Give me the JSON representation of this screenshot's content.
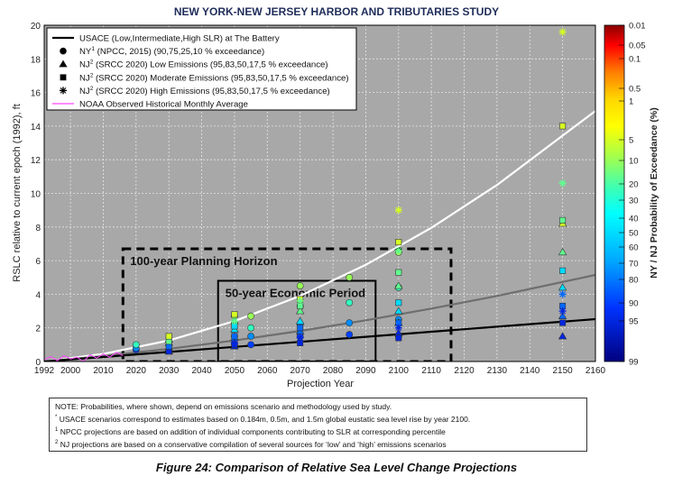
{
  "page": {
    "title": "NEW YORK-NEW JERSEY HARBOR AND TRIBUTARIES STUDY",
    "caption": "Figure 24:  Comparison of Relative Sea Level Change Projections"
  },
  "colors": {
    "plot_bg": "#a8a8a8",
    "grid": "#e6e6e6",
    "usace": "#000000",
    "noaa": "#ff44ff"
  },
  "legend": [
    {
      "marker": "line-black",
      "label": "USACE (Low,Intermediate,High SLR) at The Battery"
    },
    {
      "marker": "circle",
      "label": "NY",
      "sup": "1",
      "rest": " (NPCC, 2015) (90,75,25,10 % exceedance)"
    },
    {
      "marker": "triangle",
      "label": "NJ",
      "sup": "2",
      "rest": " (SRCC 2020) Low Emissions (95,83,50,17,5 % exceedance)"
    },
    {
      "marker": "square",
      "label": "NJ",
      "sup": "2",
      "rest": " (SRCC 2020) Moderate Emissions (95,83,50,17,5 % exceedance)"
    },
    {
      "marker": "star",
      "label": "NJ",
      "sup": "2",
      "rest": " (SRCC 2020) High Emissions (95,83,50,17,5 % exceedance)"
    },
    {
      "marker": "line-magenta",
      "label": "NOAA Observed Historical Monthly Average"
    }
  ],
  "annotations": {
    "planning": "100-year Planning Horizon",
    "economic": "50-year Economic Period"
  },
  "notes": {
    "main": "NOTE: Probabilities, where shown, depend on emissions scenario and methodology used by study.",
    "n_star": "USACE scenarios correspond to estimates based on 0.184m, 0.5m, and 1.5m global eustatic sea level rise by year 2100.",
    "n1": "NPCC projections are based on addition of individual components contributing to SLR at corresponding percentile",
    "n2": "NJ projections are based on a conservative compilation of several sources for ‘low’ and ‘high’ emissions scenarios"
  },
  "chart_data": {
    "type": "scatter",
    "title": "",
    "xlabel": "Projection Year",
    "ylabel": "RSLC relative to current epoch (1992), ft",
    "xlim": [
      1992,
      2160
    ],
    "ylim": [
      0,
      20
    ],
    "xticks": [
      1992,
      2000,
      2010,
      2020,
      2030,
      2040,
      2050,
      2060,
      2070,
      2080,
      2090,
      2100,
      2110,
      2120,
      2130,
      2140,
      2150,
      2160
    ],
    "yticks": [
      0,
      2,
      4,
      6,
      8,
      10,
      12,
      14,
      16,
      18,
      20
    ],
    "grid": true,
    "colorbar": {
      "label": "NY / NJ Probability of Exceedance (%)",
      "ticks": [
        "0.01",
        "0.05",
        "0.1",
        "0.5",
        "1",
        "5",
        "10",
        "20",
        "30",
        "40",
        "50",
        "60",
        "70",
        "80",
        "90",
        "95",
        "99"
      ]
    },
    "series": [
      {
        "name": "USACE (Low,Intermediate,High SLR) at The Battery",
        "kind": "curves",
        "x": [
          1992,
          2010,
          2030,
          2050,
          2070,
          2090,
          2110,
          2130,
          2160
        ],
        "low": [
          0,
          0.27,
          0.57,
          0.87,
          1.17,
          1.47,
          1.77,
          2.07,
          2.52
        ],
        "intermediate": [
          0,
          0.32,
          0.75,
          1.25,
          1.82,
          2.45,
          3.15,
          3.9,
          5.15
        ],
        "high": [
          0,
          0.45,
          1.25,
          2.4,
          3.9,
          5.75,
          7.95,
          10.5,
          14.9
        ]
      },
      {
        "name": "NOAA Observed Historical Monthly Average",
        "kind": "line",
        "x": [
          1992,
          1994,
          1996,
          1998,
          2000,
          2002,
          2004,
          2006,
          2008,
          2010,
          2012,
          2014,
          2016
        ],
        "y": [
          0.1,
          0.3,
          0.05,
          0.35,
          0.15,
          0.25,
          0.0,
          0.4,
          0.2,
          0.45,
          0.25,
          0.55,
          0.35
        ]
      },
      {
        "name": "NY (NPCC, 2015) (90,75,25,10 % exceedance)",
        "kind": "circle",
        "points": [
          {
            "x": 2020,
            "y": 0.7,
            "p": 90
          },
          {
            "x": 2020,
            "y": 0.8,
            "p": 75
          },
          {
            "x": 2020,
            "y": 1.0,
            "p": 25
          },
          {
            "x": 2050,
            "y": 1.0,
            "p": 90
          },
          {
            "x": 2050,
            "y": 1.5,
            "p": 75
          },
          {
            "x": 2050,
            "y": 2.7,
            "p": 10
          },
          {
            "x": 2055,
            "y": 1.0,
            "p": 90
          },
          {
            "x": 2055,
            "y": 1.5,
            "p": 75
          },
          {
            "x": 2055,
            "y": 2.0,
            "p": 25
          },
          {
            "x": 2055,
            "y": 2.7,
            "p": 10
          },
          {
            "x": 2070,
            "y": 1.5,
            "p": 90
          },
          {
            "x": 2070,
            "y": 2.2,
            "p": 75
          },
          {
            "x": 2070,
            "y": 3.3,
            "p": 25
          },
          {
            "x": 2070,
            "y": 4.5,
            "p": 10
          },
          {
            "x": 2085,
            "y": 1.6,
            "p": 90
          },
          {
            "x": 2085,
            "y": 2.3,
            "p": 75
          },
          {
            "x": 2085,
            "y": 3.5,
            "p": 25
          },
          {
            "x": 2085,
            "y": 5.0,
            "p": 10
          },
          {
            "x": 2100,
            "y": 1.5,
            "p": 90
          },
          {
            "x": 2100,
            "y": 2.5,
            "p": 75
          },
          {
            "x": 2100,
            "y": 4.4,
            "p": 25
          },
          {
            "x": 2100,
            "y": 6.5,
            "p": 10
          }
        ]
      },
      {
        "name": "NJ (SRCC 2020) Low Emissions (95,83,50,17,5 % exceedance)",
        "kind": "triangle",
        "points": [
          {
            "x": 2030,
            "y": 0.6,
            "p": 95
          },
          {
            "x": 2030,
            "y": 0.8,
            "p": 83
          },
          {
            "x": 2030,
            "y": 1.1,
            "p": 50
          },
          {
            "x": 2030,
            "y": 1.3,
            "p": 17
          },
          {
            "x": 2050,
            "y": 0.9,
            "p": 95
          },
          {
            "x": 2050,
            "y": 1.4,
            "p": 83
          },
          {
            "x": 2050,
            "y": 1.9,
            "p": 50
          },
          {
            "x": 2050,
            "y": 2.4,
            "p": 17
          },
          {
            "x": 2070,
            "y": 1.3,
            "p": 95
          },
          {
            "x": 2070,
            "y": 1.8,
            "p": 83
          },
          {
            "x": 2070,
            "y": 2.4,
            "p": 50
          },
          {
            "x": 2070,
            "y": 3.0,
            "p": 17
          },
          {
            "x": 2100,
            "y": 1.7,
            "p": 95
          },
          {
            "x": 2100,
            "y": 2.3,
            "p": 83
          },
          {
            "x": 2100,
            "y": 3.0,
            "p": 50
          },
          {
            "x": 2100,
            "y": 4.5,
            "p": 17
          },
          {
            "x": 2150,
            "y": 1.5,
            "p": 95
          },
          {
            "x": 2150,
            "y": 2.7,
            "p": 83
          },
          {
            "x": 2150,
            "y": 4.4,
            "p": 50
          },
          {
            "x": 2150,
            "y": 6.5,
            "p": 17
          },
          {
            "x": 2150,
            "y": 8.2,
            "p": 5
          }
        ]
      },
      {
        "name": "NJ (SRCC 2020) Moderate Emissions (95,83,50,17,5 % exceedance)",
        "kind": "square",
        "points": [
          {
            "x": 2030,
            "y": 0.6,
            "p": 95
          },
          {
            "x": 2030,
            "y": 0.9,
            "p": 83
          },
          {
            "x": 2030,
            "y": 1.2,
            "p": 17
          },
          {
            "x": 2030,
            "y": 1.5,
            "p": 5
          },
          {
            "x": 2050,
            "y": 1.0,
            "p": 95
          },
          {
            "x": 2050,
            "y": 1.5,
            "p": 83
          },
          {
            "x": 2050,
            "y": 2.1,
            "p": 50
          },
          {
            "x": 2050,
            "y": 2.8,
            "p": 5
          },
          {
            "x": 2070,
            "y": 1.1,
            "p": 95
          },
          {
            "x": 2070,
            "y": 2.0,
            "p": 83
          },
          {
            "x": 2070,
            "y": 3.3,
            "p": 17
          },
          {
            "x": 2070,
            "y": 3.7,
            "p": 5
          },
          {
            "x": 2100,
            "y": 1.4,
            "p": 95
          },
          {
            "x": 2100,
            "y": 2.3,
            "p": 83
          },
          {
            "x": 2100,
            "y": 3.5,
            "p": 50
          },
          {
            "x": 2100,
            "y": 5.3,
            "p": 17
          },
          {
            "x": 2100,
            "y": 7.1,
            "p": 5
          },
          {
            "x": 2150,
            "y": 2.3,
            "p": 95
          },
          {
            "x": 2150,
            "y": 3.3,
            "p": 83
          },
          {
            "x": 2150,
            "y": 5.4,
            "p": 50
          },
          {
            "x": 2150,
            "y": 8.4,
            "p": 17
          },
          {
            "x": 2150,
            "y": 14.0,
            "p": 5
          }
        ]
      },
      {
        "name": "NJ (SRCC 2020) High Emissions (95,83,50,17,5 % exceedance)",
        "kind": "star",
        "points": [
          {
            "x": 2050,
            "y": 1.1,
            "p": 95
          },
          {
            "x": 2050,
            "y": 2.4,
            "p": 17
          },
          {
            "x": 2070,
            "y": 1.4,
            "p": 95
          },
          {
            "x": 2070,
            "y": 3.6,
            "p": 17
          },
          {
            "x": 2100,
            "y": 2.0,
            "p": 95
          },
          {
            "x": 2100,
            "y": 6.6,
            "p": 17
          },
          {
            "x": 2100,
            "y": 9.0,
            "p": 5
          },
          {
            "x": 2150,
            "y": 3.0,
            "p": 95
          },
          {
            "x": 2150,
            "y": 4.0,
            "p": 83
          },
          {
            "x": 2150,
            "y": 10.6,
            "p": 17
          },
          {
            "x": 2150,
            "y": 19.6,
            "p": 5
          }
        ]
      }
    ],
    "regions": [
      {
        "label": "100-year Planning Horizon",
        "x": [
          2016,
          2116
        ],
        "y": [
          0,
          6.7
        ],
        "style": "dashed"
      },
      {
        "label": "50-year Economic Period",
        "x": [
          2045,
          2093
        ],
        "y": [
          0,
          4.8
        ],
        "style": "solid"
      }
    ]
  }
}
